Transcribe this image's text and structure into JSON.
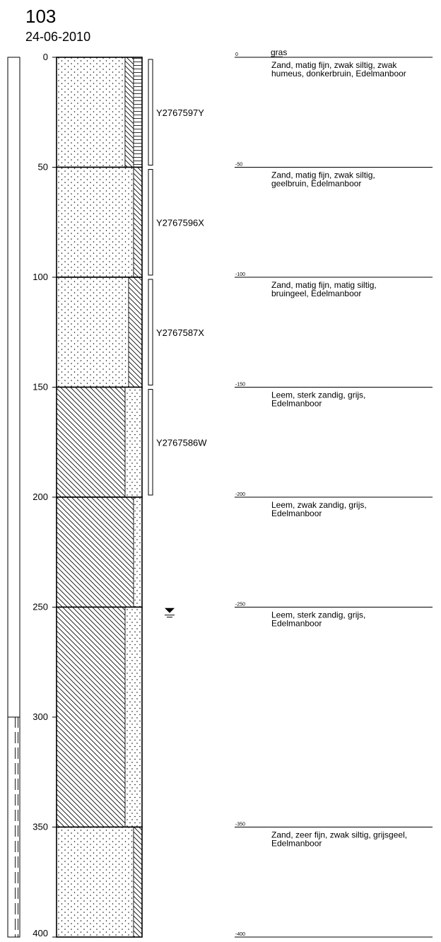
{
  "header": {
    "boring_id": "103",
    "date": "24-06-2010"
  },
  "depth_axis": {
    "ticks": [
      0,
      50,
      100,
      150,
      200,
      250,
      300,
      350,
      400
    ],
    "min": 0,
    "max": 400
  },
  "column_layers": [
    {
      "from": 0,
      "to": 50,
      "pattern": "sand-silt-humus"
    },
    {
      "from": 50,
      "to": 100,
      "pattern": "sand-silt-weak"
    },
    {
      "from": 100,
      "to": 150,
      "pattern": "sand-silt-moderate"
    },
    {
      "from": 150,
      "to": 200,
      "pattern": "loam-sand-strong"
    },
    {
      "from": 200,
      "to": 250,
      "pattern": "loam-sand-weak"
    },
    {
      "from": 250,
      "to": 350,
      "pattern": "loam-sand-strong"
    },
    {
      "from": 350,
      "to": 400,
      "pattern": "sand-silt-weak"
    }
  ],
  "samples": [
    {
      "code": "Y2767597Y",
      "from": 0,
      "to": 50
    },
    {
      "code": "Y2767596X",
      "from": 50,
      "to": 100
    },
    {
      "code": "Y2767587X",
      "from": 100,
      "to": 150
    },
    {
      "code": "Y2767586W",
      "from": 150,
      "to": 200
    }
  ],
  "groundwater": {
    "depth": 252,
    "symbol": "groundwater-level"
  },
  "side_bar": {
    "hatched_from": 300,
    "hatched_to": 400
  },
  "descriptions": [
    {
      "depth_label": "0",
      "lines": [
        "Zand, matig fijn, zwak siltig, zwak",
        "humeus, donkerbruin, Edelmanboor"
      ],
      "top_note": "gras"
    },
    {
      "depth_label": "-50",
      "lines": [
        "Zand, matig fijn, zwak siltig,",
        "geelbruin, Edelmanboor"
      ]
    },
    {
      "depth_label": "-100",
      "lines": [
        "Zand, matig fijn, matig siltig,",
        "bruingeel, Edelmanboor"
      ]
    },
    {
      "depth_label": "-150",
      "lines": [
        "Leem, sterk zandig, grijs,",
        "Edelmanboor"
      ]
    },
    {
      "depth_label": "-200",
      "lines": [
        "Leem, zwak zandig, grijs,",
        "Edelmanboor"
      ]
    },
    {
      "depth_label": "-250",
      "lines": [
        "Leem, sterk zandig, grijs,",
        "Edelmanboor"
      ]
    },
    {
      "depth_label": "-350",
      "lines": [
        "Zand, zeer fijn, zwak siltig, grijsgeel,",
        "Edelmanboor"
      ]
    },
    {
      "depth_label": "-400",
      "lines": []
    }
  ],
  "colors": {
    "ink": "#000000",
    "paper": "#ffffff"
  }
}
